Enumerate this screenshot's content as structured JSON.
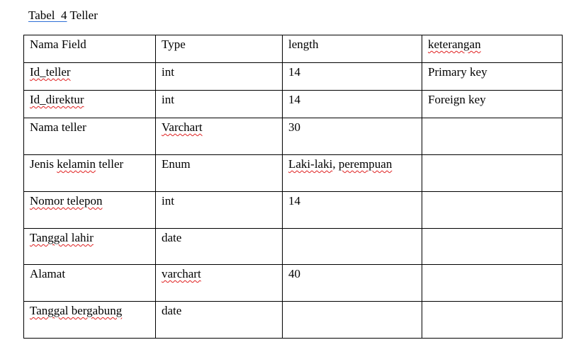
{
  "title": {
    "label": "Tabel  4",
    "name": " Teller"
  },
  "table": {
    "headers": [
      [
        {
          "t": "Nama Field",
          "err": false
        }
      ],
      [
        {
          "t": "Type",
          "err": false
        }
      ],
      [
        {
          "t": "length",
          "err": false
        }
      ],
      [
        {
          "t": "keterangan",
          "err": true
        }
      ]
    ],
    "rows": [
      [
        [
          {
            "t": "Id_teller",
            "err": true
          }
        ],
        [
          {
            "t": "int",
            "err": false
          }
        ],
        [
          {
            "t": "14",
            "err": false
          }
        ],
        [
          {
            "t": "Primary key",
            "err": false
          }
        ]
      ],
      [
        [
          {
            "t": "Id_direktur",
            "err": true
          }
        ],
        [
          {
            "t": "int",
            "err": false
          }
        ],
        [
          {
            "t": "14",
            "err": false
          }
        ],
        [
          {
            "t": "Foreign key",
            "err": false
          }
        ]
      ],
      [
        [
          {
            "t": "Nama teller",
            "err": false
          }
        ],
        [
          {
            "t": "Varchart",
            "err": true
          }
        ],
        [
          {
            "t": "30",
            "err": false
          }
        ],
        []
      ],
      [
        [
          {
            "t": "Jenis ",
            "err": false
          },
          {
            "t": "kelamin",
            "err": true
          },
          {
            "t": " teller",
            "err": false
          }
        ],
        [
          {
            "t": "Enum",
            "err": false
          }
        ],
        [
          {
            "t": "Laki-laki",
            "err": true
          },
          {
            "t": ", ",
            "err": false
          },
          {
            "t": "perempuan",
            "err": true
          }
        ],
        []
      ],
      [
        [
          {
            "t": "Nomor telepon",
            "err": true
          }
        ],
        [
          {
            "t": "int",
            "err": false
          }
        ],
        [
          {
            "t": "14",
            "err": false
          }
        ],
        []
      ],
      [
        [
          {
            "t": "Tanggal lahir",
            "err": true
          }
        ],
        [
          {
            "t": "date",
            "err": false
          }
        ],
        [],
        []
      ],
      [
        [
          {
            "t": "Alamat",
            "err": false
          }
        ],
        [
          {
            "t": "varchart",
            "err": true
          }
        ],
        [
          {
            "t": "40",
            "err": false
          }
        ],
        []
      ],
      [
        [
          {
            "t": "Tanggal bergabung",
            "err": true
          }
        ],
        [
          {
            "t": "date",
            "err": false
          }
        ],
        [],
        []
      ]
    ]
  }
}
